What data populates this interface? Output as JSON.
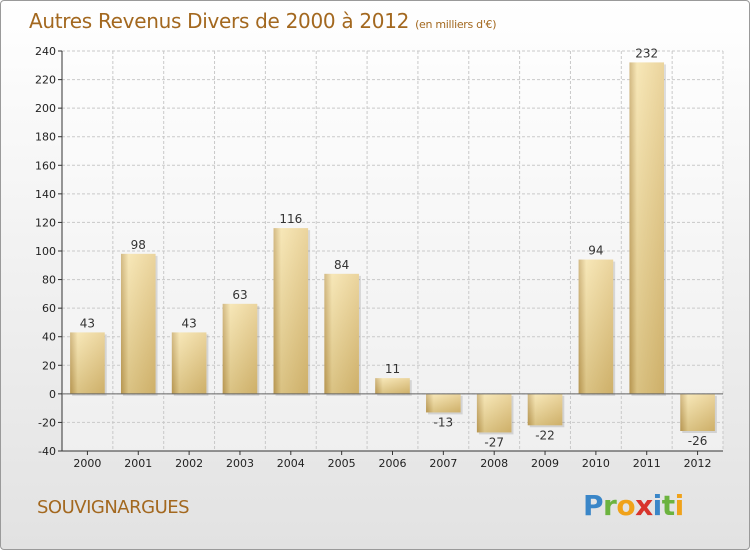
{
  "title": "Autres Revenus Divers de 2000 à 2012",
  "title_unit": "(en milliers d'€)",
  "commune": "SOUVIGNARGUES",
  "logo": {
    "letters": [
      {
        "ch": "P",
        "color": "#3a86c8"
      },
      {
        "ch": "r",
        "color": "#6cb33f"
      },
      {
        "ch": "o",
        "color": "#f0a21a"
      },
      {
        "ch": "x",
        "color": "#d8342c"
      },
      {
        "ch": "i",
        "color": "#3a86c8"
      },
      {
        "ch": "t",
        "color": "#6cb33f"
      },
      {
        "ch": "i",
        "color": "#f0a21a"
      }
    ]
  },
  "colors": {
    "title": "#a3681f",
    "bar_light": "#f2dc9a",
    "bar_dark": "#c4a35c",
    "grid": "#c9c9c9",
    "axis": "#333333"
  },
  "chart_data": {
    "type": "bar",
    "title": "Autres Revenus Divers de 2000 à 2012",
    "subtitle": "(en milliers d'€)",
    "categories": [
      "2000",
      "2001",
      "2002",
      "2003",
      "2004",
      "2005",
      "2006",
      "2007",
      "2008",
      "2009",
      "2010",
      "2011",
      "2012"
    ],
    "values": [
      43,
      98,
      43,
      63,
      116,
      84,
      11,
      -13,
      -27,
      -22,
      94,
      232,
      -26
    ],
    "ylim": [
      -40,
      240
    ],
    "yticks": [
      -40,
      -20,
      0,
      20,
      40,
      60,
      80,
      100,
      120,
      140,
      160,
      180,
      200,
      220,
      240
    ],
    "grid": true,
    "legend": "none"
  }
}
